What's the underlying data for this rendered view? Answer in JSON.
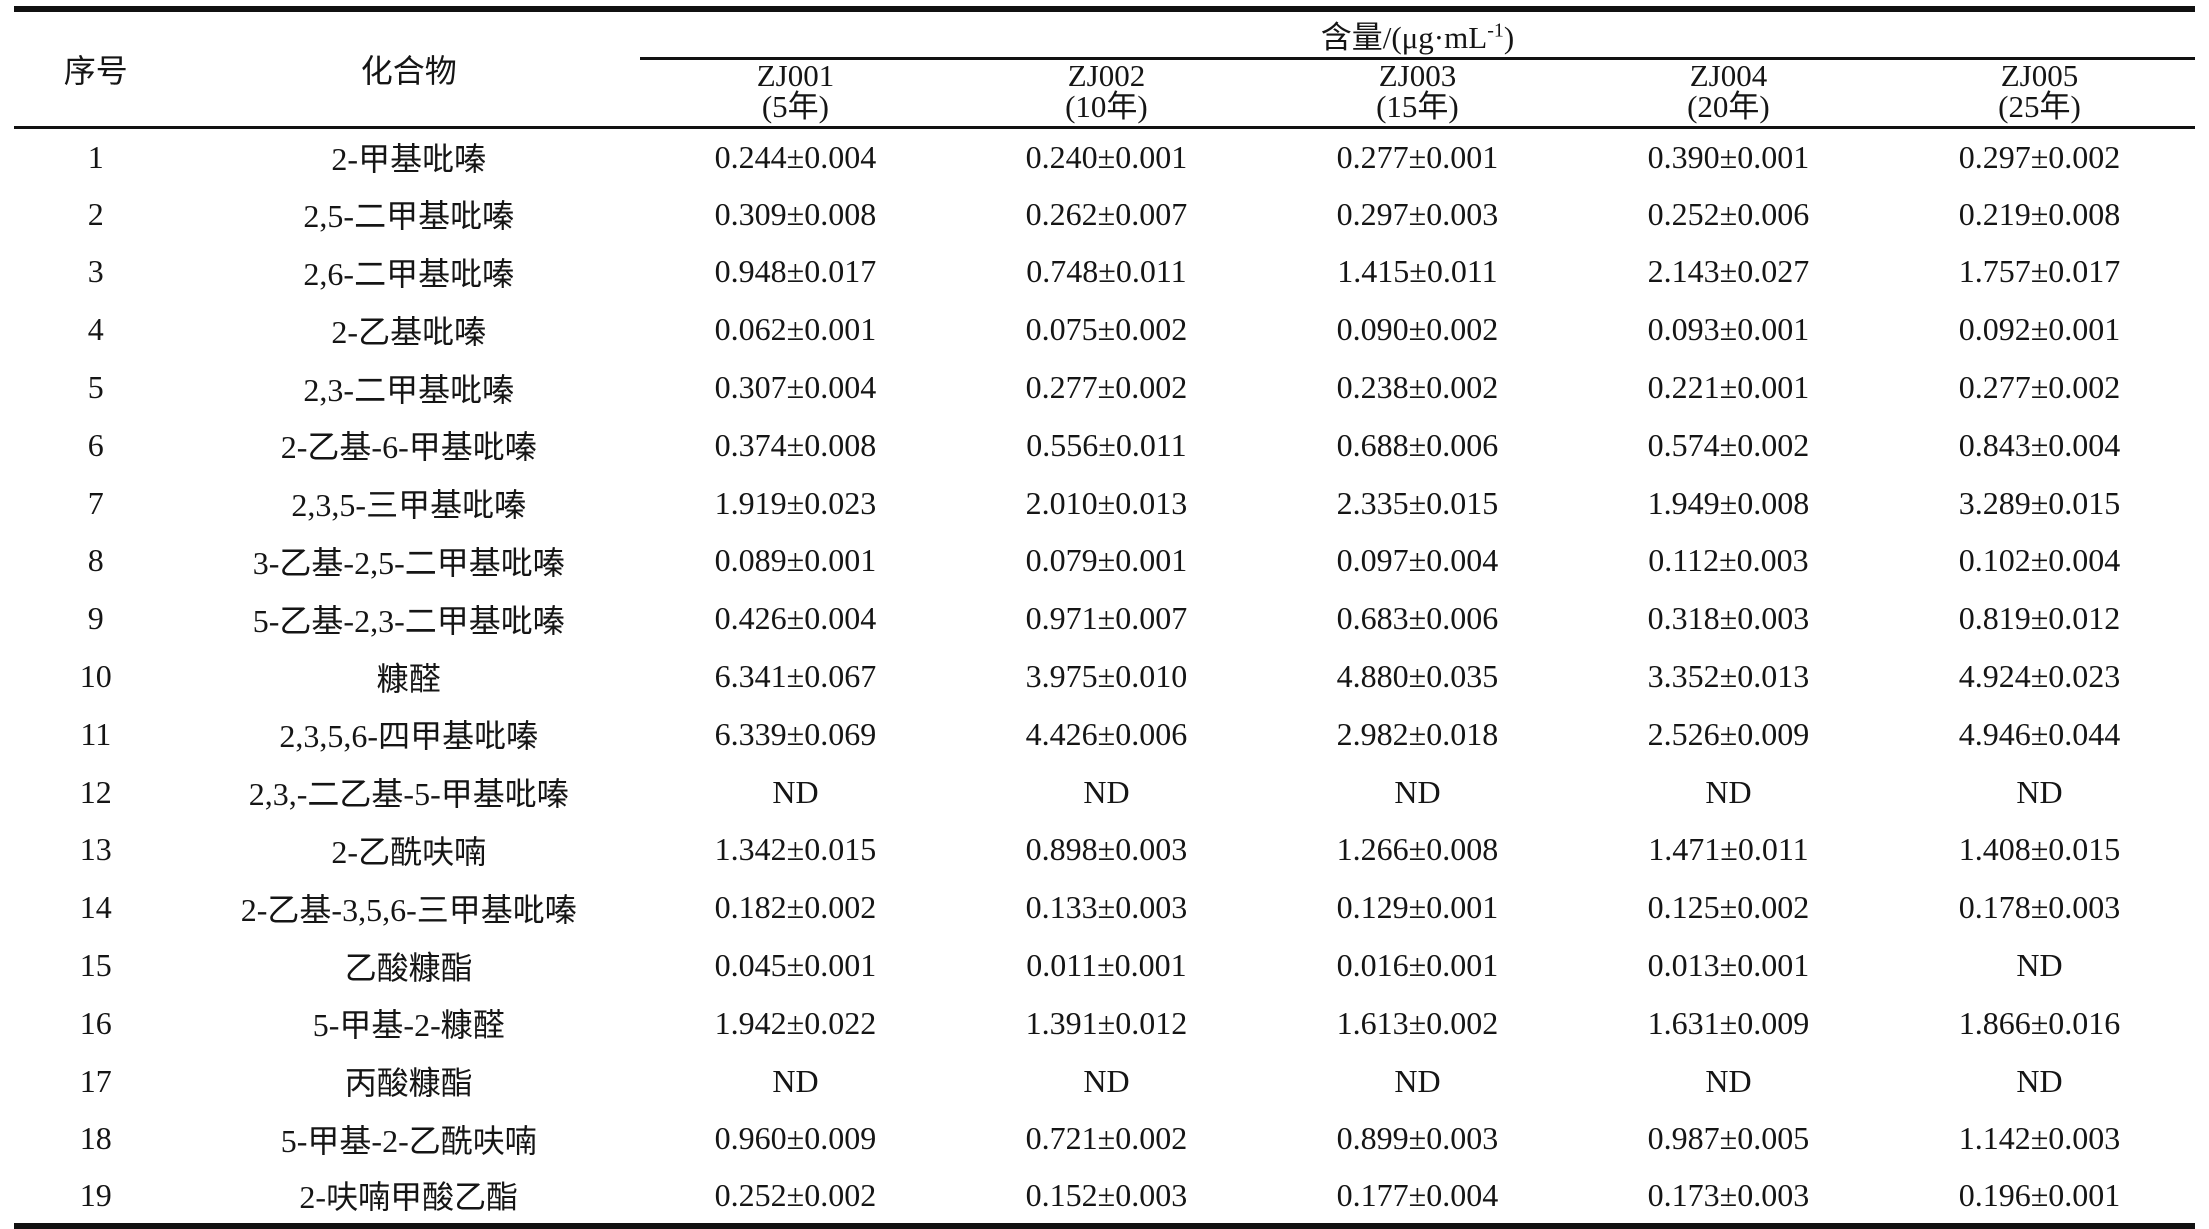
{
  "table": {
    "headers": {
      "no": "序号",
      "compound": "化合物",
      "unit_prefix": "含量/(μg·mL",
      "unit_sup": "-1",
      "unit_suffix": ")"
    },
    "columns": [
      {
        "id": "ZJ001",
        "year": "(5年)"
      },
      {
        "id": "ZJ002",
        "year": "(10年)"
      },
      {
        "id": "ZJ003",
        "year": "(15年)"
      },
      {
        "id": "ZJ004",
        "year": "(20年)"
      },
      {
        "id": "ZJ005",
        "year": "(25年)"
      }
    ],
    "rows": [
      {
        "no": "1",
        "compound": "2-甲基吡嗪",
        "values": [
          "0.244±0.004",
          "0.240±0.001",
          "0.277±0.001",
          "0.390±0.001",
          "0.297±0.002"
        ]
      },
      {
        "no": "2",
        "compound": "2,5-二甲基吡嗪",
        "values": [
          "0.309±0.008",
          "0.262±0.007",
          "0.297±0.003",
          "0.252±0.006",
          "0.219±0.008"
        ]
      },
      {
        "no": "3",
        "compound": "2,6-二甲基吡嗪",
        "values": [
          "0.948±0.017",
          "0.748±0.011",
          "1.415±0.011",
          "2.143±0.027",
          "1.757±0.017"
        ]
      },
      {
        "no": "4",
        "compound": "2-乙基吡嗪",
        "values": [
          "0.062±0.001",
          "0.075±0.002",
          "0.090±0.002",
          "0.093±0.001",
          "0.092±0.001"
        ]
      },
      {
        "no": "5",
        "compound": "2,3-二甲基吡嗪",
        "values": [
          "0.307±0.004",
          "0.277±0.002",
          "0.238±0.002",
          "0.221±0.001",
          "0.277±0.002"
        ]
      },
      {
        "no": "6",
        "compound": "2-乙基-6-甲基吡嗪",
        "values": [
          "0.374±0.008",
          "0.556±0.011",
          "0.688±0.006",
          "0.574±0.002",
          "0.843±0.004"
        ]
      },
      {
        "no": "7",
        "compound": "2,3,5-三甲基吡嗪",
        "values": [
          "1.919±0.023",
          "2.010±0.013",
          "2.335±0.015",
          "1.949±0.008",
          "3.289±0.015"
        ]
      },
      {
        "no": "8",
        "compound": "3-乙基-2,5-二甲基吡嗪",
        "values": [
          "0.089±0.001",
          "0.079±0.001",
          "0.097±0.004",
          "0.112±0.003",
          "0.102±0.004"
        ]
      },
      {
        "no": "9",
        "compound": "5-乙基-2,3-二甲基吡嗪",
        "values": [
          "0.426±0.004",
          "0.971±0.007",
          "0.683±0.006",
          "0.318±0.003",
          "0.819±0.012"
        ]
      },
      {
        "no": "10",
        "compound": "糠醛",
        "values": [
          "6.341±0.067",
          "3.975±0.010",
          "4.880±0.035",
          "3.352±0.013",
          "4.924±0.023"
        ]
      },
      {
        "no": "11",
        "compound": "2,3,5,6-四甲基吡嗪",
        "values": [
          "6.339±0.069",
          "4.426±0.006",
          "2.982±0.018",
          "2.526±0.009",
          "4.946±0.044"
        ]
      },
      {
        "no": "12",
        "compound": "2,3,-二乙基-5-甲基吡嗪",
        "values": [
          "ND",
          "ND",
          "ND",
          "ND",
          "ND"
        ]
      },
      {
        "no": "13",
        "compound": "2-乙酰呋喃",
        "values": [
          "1.342±0.015",
          "0.898±0.003",
          "1.266±0.008",
          "1.471±0.011",
          "1.408±0.015"
        ]
      },
      {
        "no": "14",
        "compound": "2-乙基-3,5,6-三甲基吡嗪",
        "values": [
          "0.182±0.002",
          "0.133±0.003",
          "0.129±0.001",
          "0.125±0.002",
          "0.178±0.003"
        ]
      },
      {
        "no": "15",
        "compound": "乙酸糠酯",
        "values": [
          "0.045±0.001",
          "0.011±0.001",
          "0.016±0.001",
          "0.013±0.001",
          "ND"
        ]
      },
      {
        "no": "16",
        "compound": "5-甲基-2-糠醛",
        "values": [
          "1.942±0.022",
          "1.391±0.012",
          "1.613±0.002",
          "1.631±0.009",
          "1.866±0.016"
        ]
      },
      {
        "no": "17",
        "compound": "丙酸糠酯",
        "values": [
          "ND",
          "ND",
          "ND",
          "ND",
          "ND"
        ]
      },
      {
        "no": "18",
        "compound": "5-甲基-2-乙酰呋喃",
        "values": [
          "0.960±0.009",
          "0.721±0.002",
          "0.899±0.003",
          "0.987±0.005",
          "1.142±0.003"
        ]
      },
      {
        "no": "19",
        "compound": "2-呋喃甲酸乙酯",
        "values": [
          "0.252±0.002",
          "0.152±0.003",
          "0.177±0.004",
          "0.173±0.003",
          "0.196±0.001"
        ]
      }
    ]
  }
}
